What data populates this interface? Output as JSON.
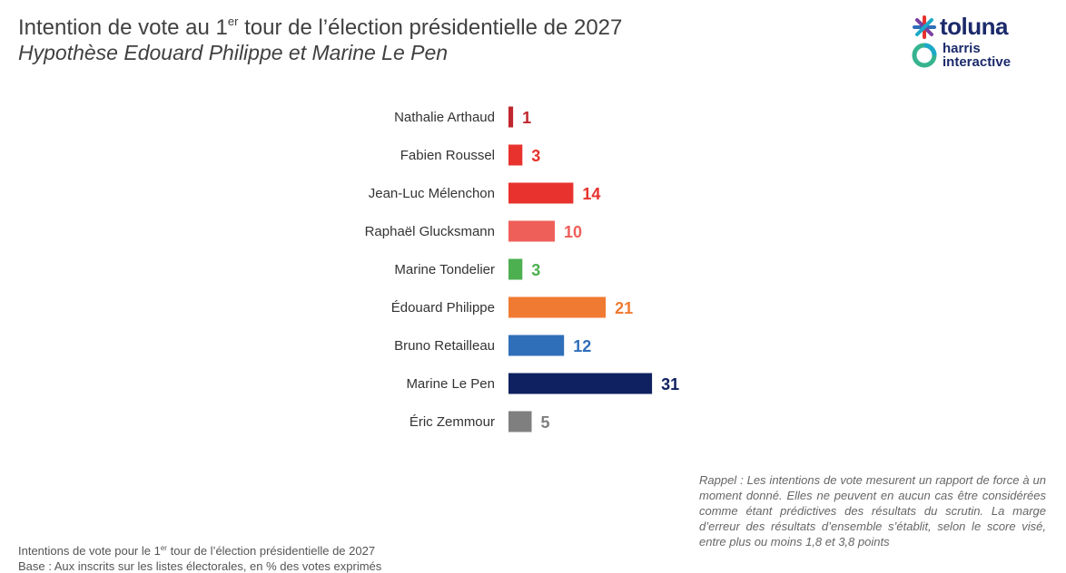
{
  "header": {
    "title_before": "Intention de vote au 1",
    "title_sup": "er",
    "title_after": " tour de l’élection présidentielle de 2027",
    "subtitle": "Hypothèse Edouard Philippe et Marine Le Pen"
  },
  "logo": {
    "toluna": "toluna",
    "harris_line1": "harris",
    "harris_line2": "interactive",
    "icon": "toluna-asterisk-icon"
  },
  "chart_data": {
    "type": "bar",
    "orientation": "horizontal",
    "categories": [
      "Nathalie Arthaud",
      "Fabien Roussel",
      "Jean-Luc Mélenchon",
      "Raphaël Glucksmann",
      "Marine Tondelier",
      "Édouard Philippe",
      "Bruno Retailleau",
      "Marine Le Pen",
      "Éric Zemmour"
    ],
    "values": [
      1,
      3,
      14,
      10,
      3,
      21,
      12,
      31,
      5
    ],
    "colors": [
      "#c0262d",
      "#e8322d",
      "#e8322d",
      "#ef5f5a",
      "#4caf50",
      "#f07a31",
      "#2f6fba",
      "#0f2160",
      "#7f7f7f"
    ],
    "data_labels": [
      "1",
      "3",
      "14",
      "10",
      "3",
      "21",
      "12",
      "31",
      "5"
    ],
    "title": "",
    "xlabel": "",
    "ylabel": "",
    "grid": false,
    "legend": "none"
  },
  "note": {
    "text": "Rappel : Les intentions de vote mesurent un rapport de force à un moment donné. Elles ne peuvent en aucun cas être considérées comme étant prédictives des résultats du scrutin. La marge d’erreur des résultats d’ensemble s’établit, selon le score visé, entre plus ou moins 1,8 et 3,8 points"
  },
  "footer": {
    "line1_before": "Intentions de vote pour le 1",
    "line1_sup": "er",
    "line1_after": " tour de l’élection présidentielle de 2027",
    "line2": "Base : Aux inscrits sur les listes électorales, en % des votes exprimés"
  }
}
